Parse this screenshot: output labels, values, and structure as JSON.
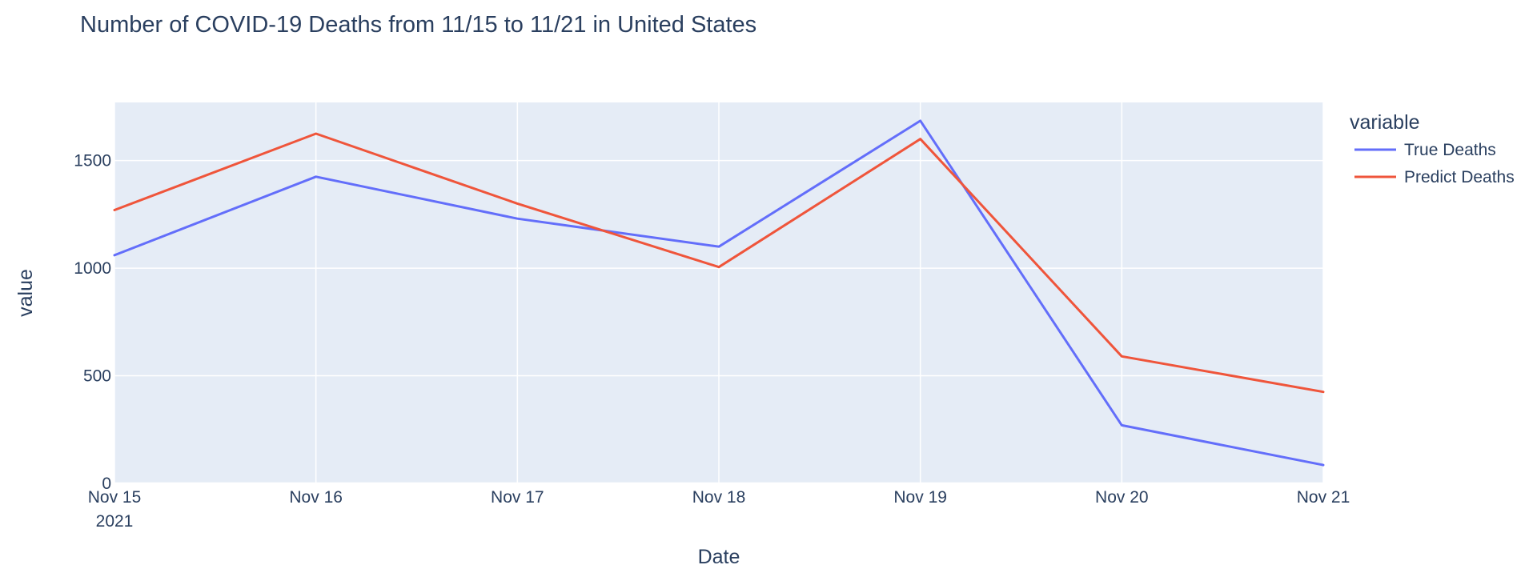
{
  "chart_data": {
    "type": "line",
    "title": "Number of COVID-19 Deaths from 11/15 to 11/21 in United States",
    "xlabel": "Date",
    "ylabel": "value",
    "x": [
      "2021-11-15",
      "2021-11-16",
      "2021-11-17",
      "2021-11-18",
      "2021-11-19",
      "2021-11-20",
      "2021-11-21"
    ],
    "x_tick_labels": [
      "Nov 15",
      "Nov 16",
      "Nov 17",
      "Nov 18",
      "Nov 19",
      "Nov 20",
      "Nov 21"
    ],
    "x_tick_year": "2021",
    "y_ticks": [
      0,
      500,
      1000,
      1500
    ],
    "ylim": [
      0,
      1770
    ],
    "grid": true,
    "legend_title": "variable",
    "legend_position": "right",
    "series": [
      {
        "name": "True Deaths",
        "color": "#636efa",
        "values": [
          1060,
          1425,
          1230,
          1100,
          1685,
          270,
          85
        ]
      },
      {
        "name": "Predict Deaths",
        "color": "#ef553b",
        "values": [
          1270,
          1625,
          1300,
          1005,
          1600,
          590,
          425
        ]
      }
    ],
    "background": "#e5ecf6",
    "gridline_color": "#ffffff"
  }
}
